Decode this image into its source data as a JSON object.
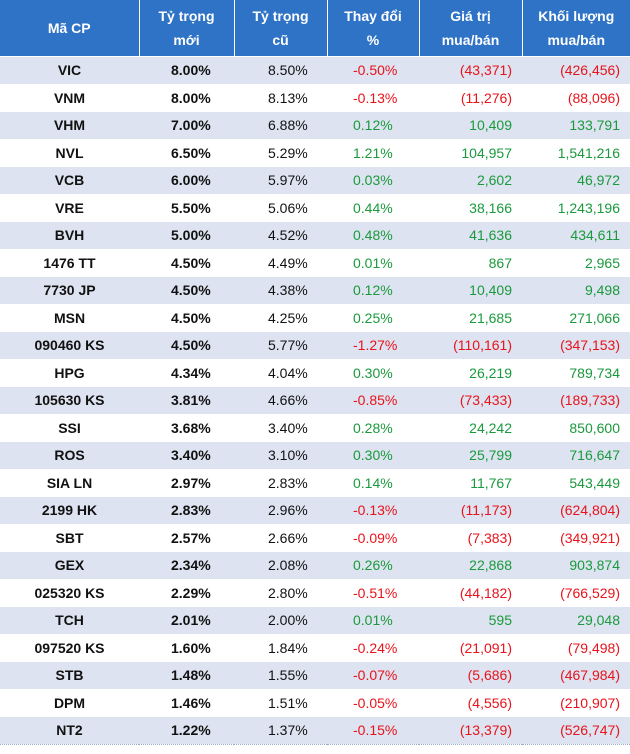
{
  "header": {
    "code": "Mã CP",
    "new_weight": [
      "Tỷ trọng",
      "mới"
    ],
    "old_weight": [
      "Tỷ trọng",
      "cũ"
    ],
    "change": [
      "Thay đổi",
      "%"
    ],
    "value": [
      "Giá trị",
      "mua/bán"
    ],
    "volume": [
      "Khối lượng",
      "mua/bán"
    ]
  },
  "colors": {
    "header_bg": "#2f73c6",
    "row_alt": "#dde3f0",
    "positive": "#1a9a3c",
    "negative": "#e8131b"
  },
  "rows": [
    {
      "code": "VIC",
      "new": "8.00%",
      "old": "8.50%",
      "change": "-0.50%",
      "value": "(43,371)",
      "volume": "(426,456)",
      "sign": "neg"
    },
    {
      "code": "VNM",
      "new": "8.00%",
      "old": "8.13%",
      "change": "-0.13%",
      "value": "(11,276)",
      "volume": "(88,096)",
      "sign": "neg"
    },
    {
      "code": "VHM",
      "new": "7.00%",
      "old": "6.88%",
      "change": "0.12%",
      "value": "10,409",
      "volume": "133,791",
      "sign": "pos"
    },
    {
      "code": "NVL",
      "new": "6.50%",
      "old": "5.29%",
      "change": "1.21%",
      "value": "104,957",
      "volume": "1,541,216",
      "sign": "pos"
    },
    {
      "code": "VCB",
      "new": "6.00%",
      "old": "5.97%",
      "change": "0.03%",
      "value": "2,602",
      "volume": "46,972",
      "sign": "pos"
    },
    {
      "code": "VRE",
      "new": "5.50%",
      "old": "5.06%",
      "change": "0.44%",
      "value": "38,166",
      "volume": "1,243,196",
      "sign": "pos"
    },
    {
      "code": "BVH",
      "new": "5.00%",
      "old": "4.52%",
      "change": "0.48%",
      "value": "41,636",
      "volume": "434,611",
      "sign": "pos"
    },
    {
      "code": "1476 TT",
      "new": "4.50%",
      "old": "4.49%",
      "change": "0.01%",
      "value": "867",
      "volume": "2,965",
      "sign": "pos"
    },
    {
      "code": "7730 JP",
      "new": "4.50%",
      "old": "4.38%",
      "change": "0.12%",
      "value": "10,409",
      "volume": "9,498",
      "sign": "pos"
    },
    {
      "code": "MSN",
      "new": "4.50%",
      "old": "4.25%",
      "change": "0.25%",
      "value": "21,685",
      "volume": "271,066",
      "sign": "pos"
    },
    {
      "code": "090460 KS",
      "new": "4.50%",
      "old": "5.77%",
      "change": "-1.27%",
      "value": "(110,161)",
      "volume": "(347,153)",
      "sign": "neg"
    },
    {
      "code": "HPG",
      "new": "4.34%",
      "old": "4.04%",
      "change": "0.30%",
      "value": "26,219",
      "volume": "789,734",
      "sign": "pos"
    },
    {
      "code": "105630 KS",
      "new": "3.81%",
      "old": "4.66%",
      "change": "-0.85%",
      "value": "(73,433)",
      "volume": "(189,733)",
      "sign": "neg"
    },
    {
      "code": "SSI",
      "new": "3.68%",
      "old": "3.40%",
      "change": "0.28%",
      "value": "24,242",
      "volume": "850,600",
      "sign": "pos"
    },
    {
      "code": "ROS",
      "new": "3.40%",
      "old": "3.10%",
      "change": "0.30%",
      "value": "25,799",
      "volume": "716,647",
      "sign": "pos"
    },
    {
      "code": "SIA LN",
      "new": "2.97%",
      "old": "2.83%",
      "change": "0.14%",
      "value": "11,767",
      "volume": "543,449",
      "sign": "pos"
    },
    {
      "code": "2199 HK",
      "new": "2.83%",
      "old": "2.96%",
      "change": "-0.13%",
      "value": "(11,173)",
      "volume": "(624,804)",
      "sign": "neg"
    },
    {
      "code": "SBT",
      "new": "2.57%",
      "old": "2.66%",
      "change": "-0.09%",
      "value": "(7,383)",
      "volume": "(349,921)",
      "sign": "neg"
    },
    {
      "code": "GEX",
      "new": "2.34%",
      "old": "2.08%",
      "change": "0.26%",
      "value": "22,868",
      "volume": "903,874",
      "sign": "pos"
    },
    {
      "code": "025320 KS",
      "new": "2.29%",
      "old": "2.80%",
      "change": "-0.51%",
      "value": "(44,182)",
      "volume": "(766,529)",
      "sign": "neg"
    },
    {
      "code": "TCH",
      "new": "2.01%",
      "old": "2.00%",
      "change": "0.01%",
      "value": "595",
      "volume": "29,048",
      "sign": "pos"
    },
    {
      "code": "097520 KS",
      "new": "1.60%",
      "old": "1.84%",
      "change": "-0.24%",
      "value": "(21,091)",
      "volume": "(79,498)",
      "sign": "neg"
    },
    {
      "code": "STB",
      "new": "1.48%",
      "old": "1.55%",
      "change": "-0.07%",
      "value": "(5,686)",
      "volume": "(467,984)",
      "sign": "neg"
    },
    {
      "code": "DPM",
      "new": "1.46%",
      "old": "1.51%",
      "change": "-0.05%",
      "value": "(4,556)",
      "volume": "(210,907)",
      "sign": "neg"
    },
    {
      "code": "NT2",
      "new": "1.22%",
      "old": "1.37%",
      "change": "-0.15%",
      "value": "(13,379)",
      "volume": "(526,747)",
      "sign": "neg"
    }
  ]
}
